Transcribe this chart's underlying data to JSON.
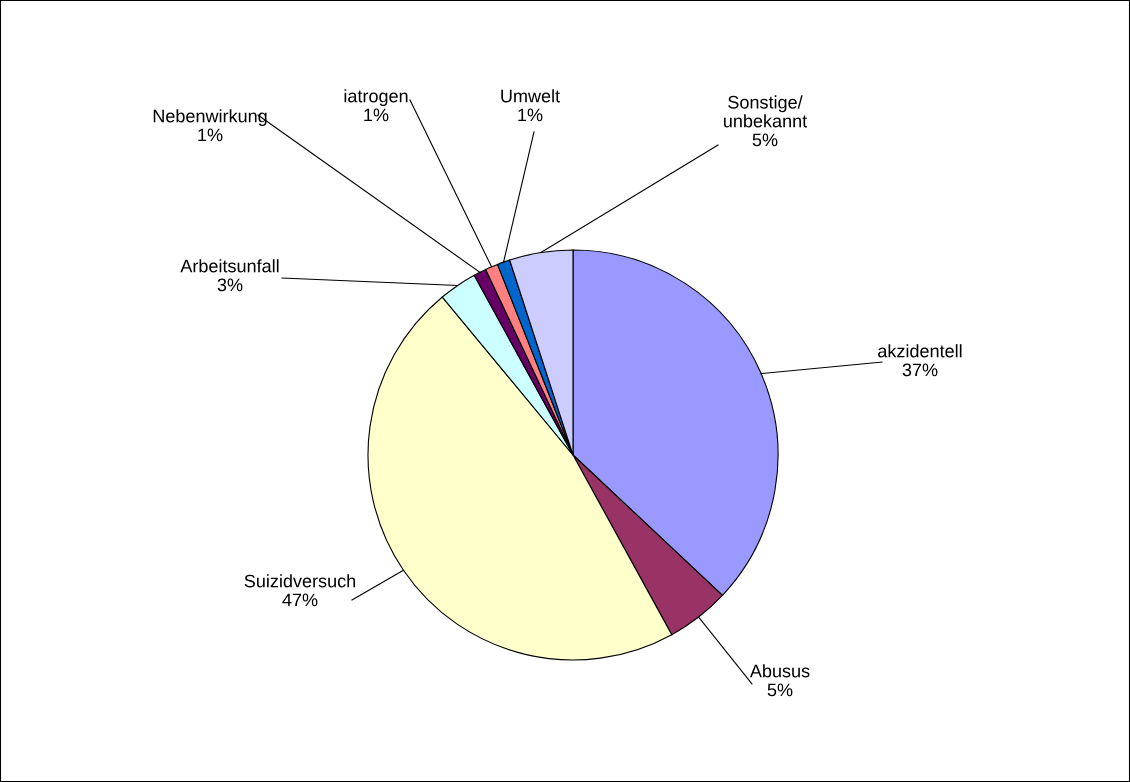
{
  "chart_data": {
    "type": "pie",
    "categories": [
      "akzidentell",
      "Abusus",
      "Suizidversuch",
      "Arbeitsunfall",
      "Nebenwirkung",
      "iatrogen",
      "Umwelt",
      "Sonstige/\nunbekannt"
    ],
    "values": [
      37,
      5,
      47,
      3,
      1,
      1,
      1,
      5
    ],
    "colors": [
      "#9999ff",
      "#993366",
      "#ffffcc",
      "#ccffff",
      "#660066",
      "#ff8080",
      "#0066cc",
      "#ccccff"
    ],
    "value_labels": [
      "37%",
      "5%",
      "47%",
      "3%",
      "1%",
      "1%",
      "1%",
      "5%"
    ],
    "legend": false
  }
}
